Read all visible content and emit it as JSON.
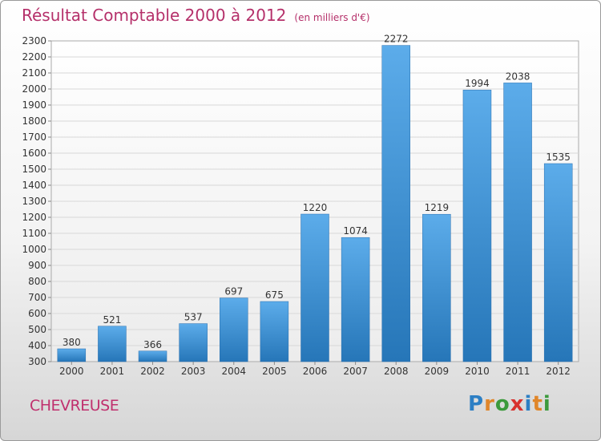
{
  "header": {
    "title": "Résultat Comptable 2000 à 2012",
    "subtitle": "(en milliers d'€)"
  },
  "footer": {
    "city": "CHEVREUSE",
    "logo_letters": [
      "P",
      "r",
      "o",
      "x",
      "i",
      "t",
      "i"
    ],
    "logo_colors": [
      "#2d7fc4",
      "#e0862a",
      "#3c9a3c",
      "#d8312e",
      "#2d7fc4",
      "#e0862a",
      "#3c9a3c"
    ]
  },
  "chart_data": {
    "type": "bar",
    "title": "Résultat Comptable 2000 à 2012",
    "subtitle": "(en milliers d'€)",
    "categories": [
      "2000",
      "2001",
      "2002",
      "2003",
      "2004",
      "2005",
      "2006",
      "2007",
      "2008",
      "2009",
      "2010",
      "2011",
      "2012"
    ],
    "values": [
      380,
      521,
      366,
      537,
      697,
      675,
      1220,
      1074,
      2272,
      1219,
      1994,
      2038,
      1535
    ],
    "ylim": [
      300,
      2300
    ],
    "yticks": [
      300,
      400,
      500,
      600,
      700,
      800,
      900,
      1000,
      1100,
      1200,
      1300,
      1400,
      1500,
      1600,
      1700,
      1800,
      1900,
      2000,
      2100,
      2200,
      2300
    ],
    "grid": true,
    "bar_color": "#3d8fd4"
  }
}
